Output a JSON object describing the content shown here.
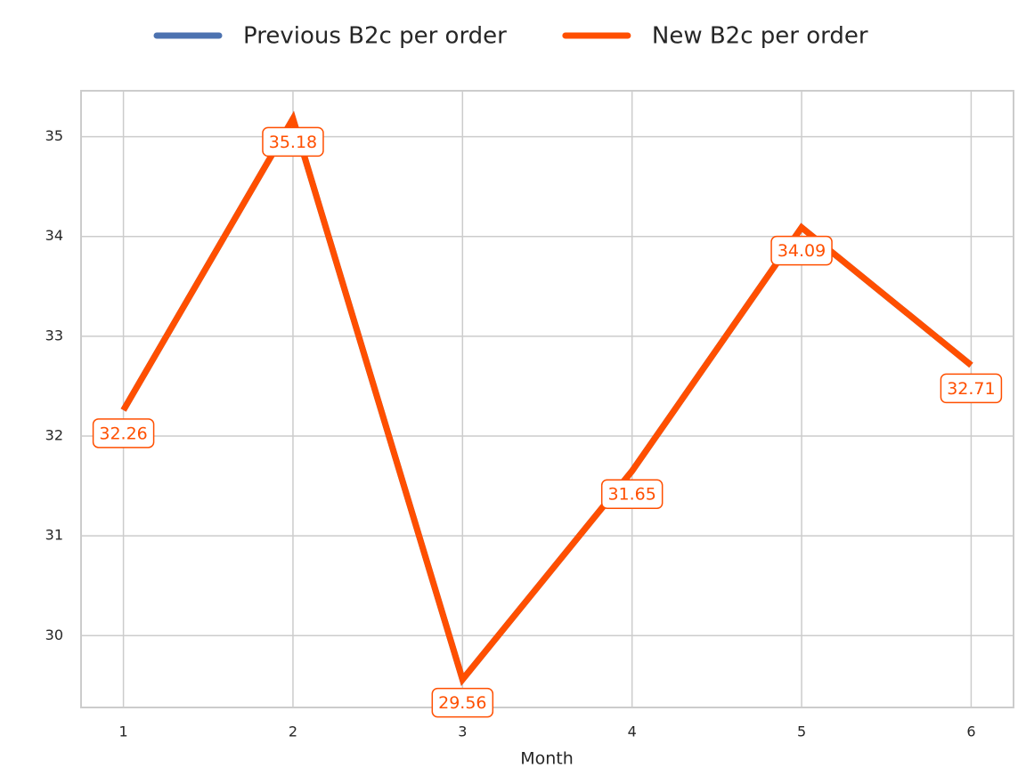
{
  "chart_data": {
    "type": "line",
    "x_label": "Month",
    "x": [
      1,
      2,
      3,
      4,
      5,
      6
    ],
    "series": [
      {
        "name": "Previous B2c per order",
        "color": "#4c72b0",
        "values": [
          32.26,
          35.18,
          29.56,
          31.65,
          34.09,
          32.71
        ]
      },
      {
        "name": "New B2c per order",
        "color": "#ff4f00",
        "values": [
          32.26,
          35.18,
          29.56,
          31.65,
          34.09,
          32.71
        ],
        "data_labels": true
      }
    ],
    "xlim": [
      0.75,
      6.25
    ],
    "xticks": [
      1,
      2,
      3,
      4,
      5,
      6
    ],
    "ylim": [
      29.28,
      35.46
    ],
    "yticks": [
      30,
      31,
      32,
      33,
      34,
      35
    ],
    "grid": true,
    "legend": "top"
  }
}
